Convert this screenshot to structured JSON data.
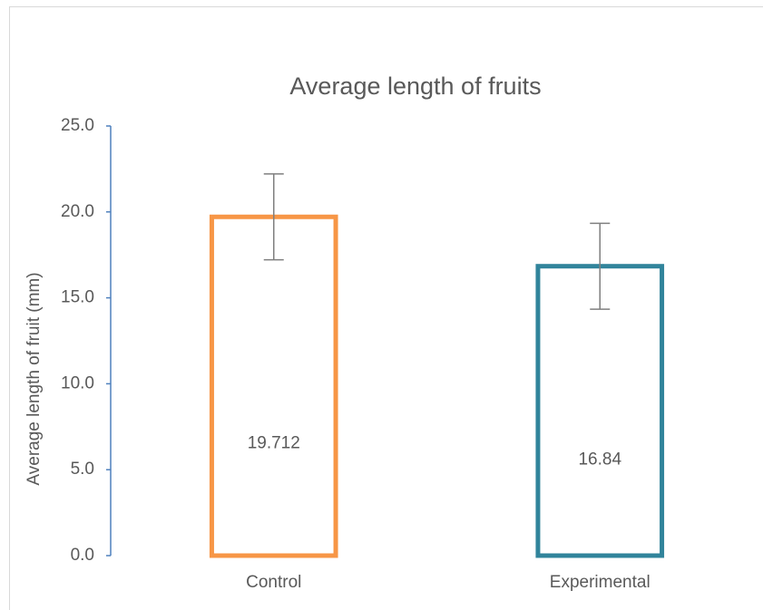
{
  "chart_data": {
    "type": "bar",
    "title": "Average length of fruits",
    "ylabel": "Average length of fruit (mm)",
    "categories": [
      "Control",
      "Experimental"
    ],
    "values": [
      19.712,
      16.84
    ],
    "errors": [
      2.5,
      2.5
    ],
    "colors": [
      "#f79646",
      "#31849b"
    ],
    "error_color": "#7f7f7f",
    "axis_color": "#4f81bd",
    "ylim": [
      0,
      25
    ],
    "yticks": [
      {
        "value": 0,
        "label": "0.0"
      },
      {
        "value": 5,
        "label": "5.0"
      },
      {
        "value": 10,
        "label": "10.0"
      },
      {
        "value": 15,
        "label": "15.0"
      },
      {
        "value": 20,
        "label": "20.0"
      },
      {
        "value": 25,
        "label": "25.0"
      }
    ],
    "grid": false
  }
}
